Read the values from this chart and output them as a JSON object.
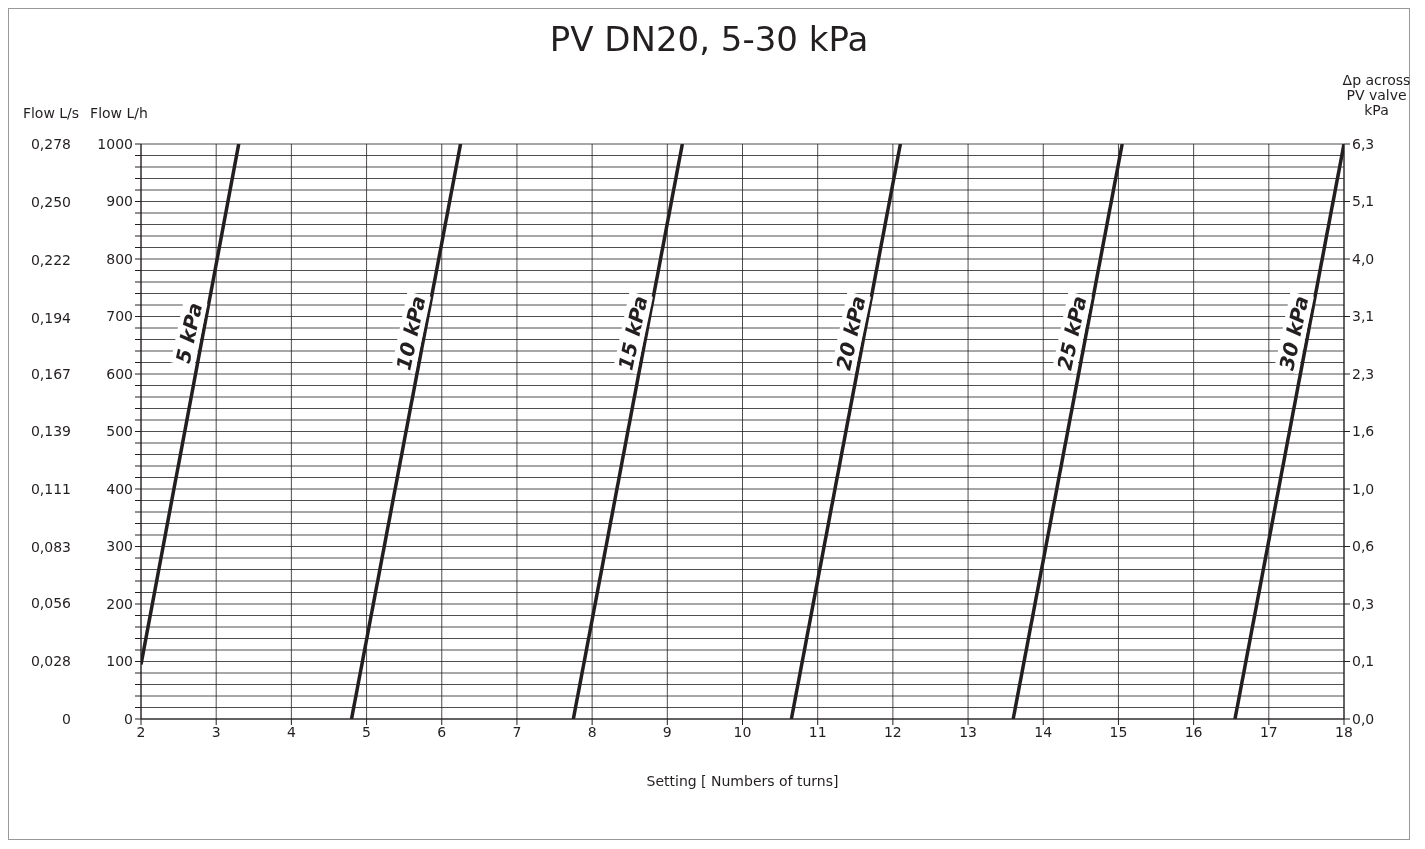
{
  "chart_data": {
    "type": "line",
    "title": "PV DN20, 5-30 kPa",
    "xlabel": "Setting [ Numbers of turns]",
    "ylabel": "Flow L/h",
    "y3label": "Flow L/s",
    "y2label": "Δp across\nPV valve\nkPa",
    "xlim": [
      2,
      18
    ],
    "xticks": [
      2,
      3,
      4,
      5,
      6,
      7,
      8,
      9,
      10,
      11,
      12,
      13,
      14,
      15,
      16,
      17,
      18
    ],
    "ylim": [
      0,
      1000
    ],
    "yticks": [
      0,
      {
        "value": 20,
        "label": null
      },
      {
        "value": 40,
        "label": null
      },
      {
        "value": 60,
        "label": null
      },
      {
        "value": 80,
        "label": null
      },
      100,
      {
        "value": 120,
        "label": null
      },
      {
        "value": 140,
        "label": null
      },
      {
        "value": 160,
        "label": null
      },
      {
        "value": 180,
        "label": null
      },
      200,
      {
        "value": 220,
        "label": null
      },
      {
        "value": 240,
        "label": null
      },
      {
        "value": 260,
        "label": null
      },
      {
        "value": 280,
        "label": null
      },
      300,
      {
        "value": 320,
        "label": null
      },
      {
        "value": 340,
        "label": null
      },
      {
        "value": 360,
        "label": null
      },
      {
        "value": 380,
        "label": null
      },
      400,
      {
        "value": 420,
        "label": null
      },
      {
        "value": 440,
        "label": null
      },
      {
        "value": 460,
        "label": null
      },
      {
        "value": 480,
        "label": null
      },
      500,
      {
        "value": 520,
        "label": null
      },
      {
        "value": 540,
        "label": null
      },
      {
        "value": 560,
        "label": null
      },
      {
        "value": 580,
        "label": null
      },
      600,
      {
        "value": 620,
        "label": null
      },
      {
        "value": 640,
        "label": null
      },
      {
        "value": 660,
        "label": null
      },
      {
        "value": 680,
        "label": null
      },
      700,
      {
        "value": 720,
        "label": null
      },
      {
        "value": 740,
        "label": null
      },
      {
        "value": 760,
        "label": null
      },
      {
        "value": 780,
        "label": null
      },
      800,
      {
        "value": 820,
        "label": null
      },
      {
        "value": 840,
        "label": null
      },
      {
        "value": 860,
        "label": null
      },
      {
        "value": 880,
        "label": null
      },
      900,
      {
        "value": 920,
        "label": null
      },
      {
        "value": 940,
        "label": null
      },
      {
        "value": 960,
        "label": null
      },
      {
        "value": 980,
        "label": null
      },
      1000
    ],
    "y3lim": [
      0,
      0.278
    ],
    "y3ticks": [
      0,
      {
        "value": 0.028,
        "label": "0,028"
      },
      {
        "value": 0.056,
        "label": "0,056"
      },
      {
        "value": 0.083,
        "label": "0,083"
      },
      {
        "value": 0.111,
        "label": "0,111"
      },
      {
        "value": 0.139,
        "label": "0,139"
      },
      {
        "value": 0.167,
        "label": "0,167"
      },
      {
        "value": 0.194,
        "label": "0,194"
      },
      {
        "value": 0.222,
        "label": "0,222"
      },
      {
        "value": 0.25,
        "label": "0,250"
      },
      {
        "value": 0.278,
        "label": "0,278"
      }
    ],
    "y2_categories": [
      "6,3",
      "5,1",
      "4,0",
      "3,1",
      "2,3",
      "1,6",
      "1,0",
      "0,6",
      "0,3",
      "0,1",
      "0,0"
    ],
    "grid": true,
    "marker": "none",
    "line_style": "solid",
    "series": [
      {
        "name": "5 kPa",
        "color": "#231f20",
        "x": [
          2,
          3.3
        ],
        "values": [
          95,
          1000
        ]
      },
      {
        "name": "10 kPa",
        "color": "#231f20",
        "x": [
          4.8,
          6.25
        ],
        "values": [
          0,
          1000
        ]
      },
      {
        "name": "15 kPa",
        "color": "#231f20",
        "x": [
          7.75,
          9.2
        ],
        "values": [
          0,
          1000
        ]
      },
      {
        "name": "20 kPa",
        "color": "#231f20",
        "x": [
          10.65,
          12.1
        ],
        "values": [
          0,
          1000
        ]
      },
      {
        "name": "25 kPa",
        "color": "#231f20",
        "x": [
          13.6,
          15.05
        ],
        "values": [
          0,
          1000
        ]
      },
      {
        "name": "30 kPa",
        "color": "#231f20",
        "x": [
          16.55,
          18
        ],
        "values": [
          0,
          1000
        ]
      }
    ]
  }
}
